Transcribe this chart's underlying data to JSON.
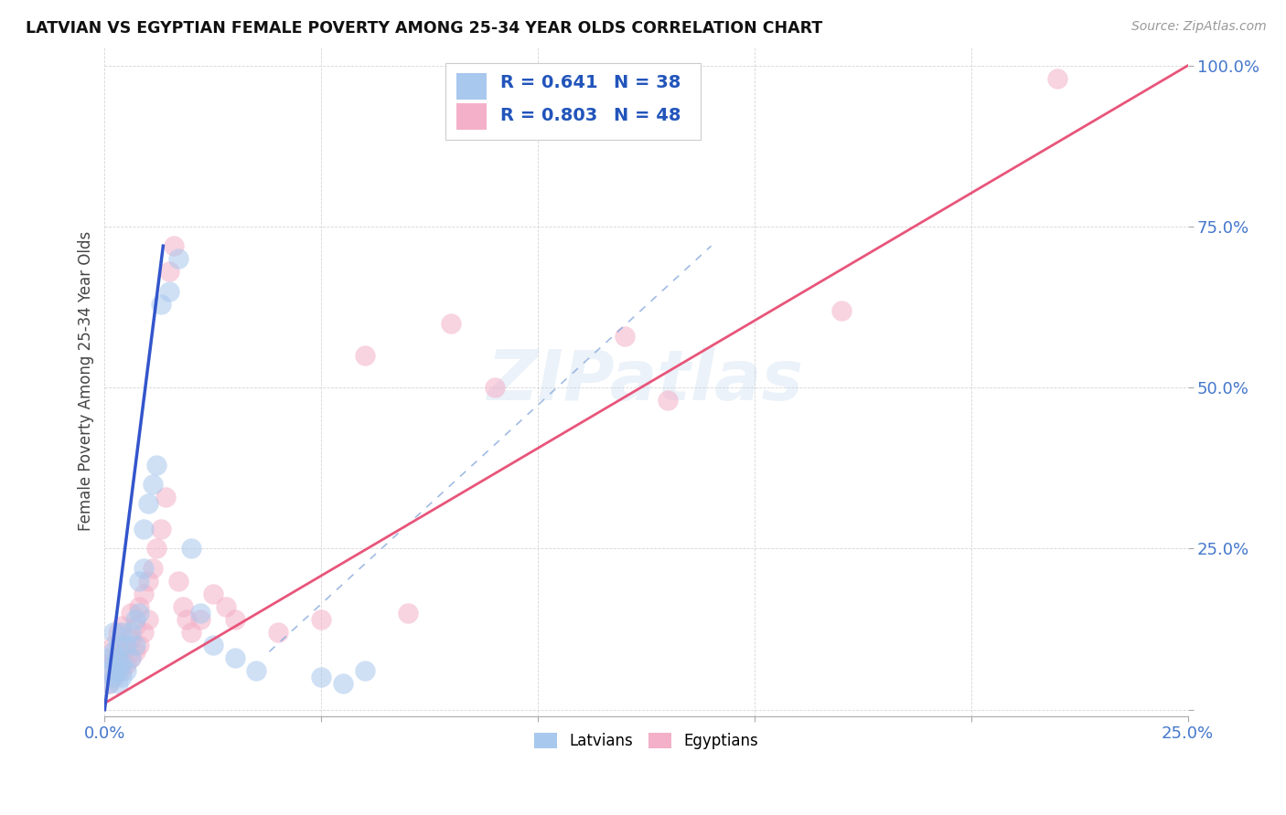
{
  "title": "LATVIAN VS EGYPTIAN FEMALE POVERTY AMONG 25-34 YEAR OLDS CORRELATION CHART",
  "source": "Source: ZipAtlas.com",
  "ylabel": "Female Poverty Among 25-34 Year Olds",
  "xlim": [
    0.0,
    0.25
  ],
  "ylim": [
    0.0,
    1.0
  ],
  "latvian_color": "#a8c8ee",
  "egyptian_color": "#f4b0c8",
  "latvian_line_color": "#3355cc",
  "egyptian_line_color": "#e8557a",
  "watermark": "ZIPatlas",
  "latvians_label": "Latvians",
  "egyptians_label": "Egyptians",
  "legend_r_latvian": "R = 0.641",
  "legend_n_latvian": "N = 38",
  "legend_r_egyptian": "R = 0.803",
  "legend_n_egyptian": "N = 48",
  "latvian_scatter_x": [
    0.001,
    0.001,
    0.001,
    0.002,
    0.002,
    0.002,
    0.002,
    0.003,
    0.003,
    0.003,
    0.003,
    0.004,
    0.004,
    0.004,
    0.005,
    0.005,
    0.006,
    0.006,
    0.007,
    0.007,
    0.008,
    0.008,
    0.009,
    0.009,
    0.01,
    0.011,
    0.012,
    0.013,
    0.015,
    0.017,
    0.02,
    0.022,
    0.025,
    0.03,
    0.035,
    0.05,
    0.055,
    0.06
  ],
  "latvian_scatter_y": [
    0.04,
    0.06,
    0.08,
    0.05,
    0.07,
    0.09,
    0.12,
    0.04,
    0.06,
    0.08,
    0.1,
    0.05,
    0.07,
    0.12,
    0.06,
    0.1,
    0.08,
    0.12,
    0.1,
    0.14,
    0.15,
    0.2,
    0.22,
    0.28,
    0.32,
    0.35,
    0.38,
    0.63,
    0.65,
    0.7,
    0.25,
    0.15,
    0.1,
    0.08,
    0.06,
    0.05,
    0.04,
    0.06
  ],
  "egyptian_scatter_x": [
    0.001,
    0.001,
    0.002,
    0.002,
    0.002,
    0.003,
    0.003,
    0.003,
    0.004,
    0.004,
    0.004,
    0.005,
    0.005,
    0.006,
    0.006,
    0.006,
    0.007,
    0.007,
    0.008,
    0.008,
    0.009,
    0.009,
    0.01,
    0.01,
    0.011,
    0.012,
    0.013,
    0.014,
    0.015,
    0.016,
    0.017,
    0.018,
    0.019,
    0.02,
    0.022,
    0.025,
    0.028,
    0.03,
    0.04,
    0.05,
    0.06,
    0.07,
    0.08,
    0.09,
    0.12,
    0.13,
    0.17,
    0.22
  ],
  "egyptian_scatter_y": [
    0.04,
    0.07,
    0.05,
    0.08,
    0.1,
    0.06,
    0.08,
    0.12,
    0.06,
    0.09,
    0.13,
    0.07,
    0.1,
    0.08,
    0.11,
    0.15,
    0.09,
    0.13,
    0.1,
    0.16,
    0.12,
    0.18,
    0.14,
    0.2,
    0.22,
    0.25,
    0.28,
    0.33,
    0.68,
    0.72,
    0.2,
    0.16,
    0.14,
    0.12,
    0.14,
    0.18,
    0.16,
    0.14,
    0.12,
    0.14,
    0.55,
    0.15,
    0.6,
    0.5,
    0.58,
    0.48,
    0.62,
    0.98
  ],
  "latvian_line_x": [
    0.0,
    0.0135
  ],
  "latvian_line_y": [
    0.0,
    0.72
  ],
  "egyptian_line_x": [
    0.0,
    0.25
  ],
  "egyptian_line_y": [
    0.01,
    1.0
  ],
  "diag_line_x": [
    0.038,
    0.14
  ],
  "diag_line_y": [
    0.09,
    0.72
  ]
}
